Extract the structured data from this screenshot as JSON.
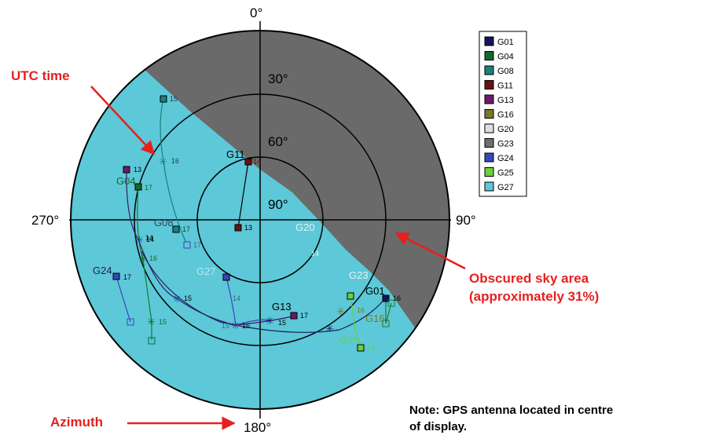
{
  "diagram": {
    "labels": {
      "azimuth_top": "0°",
      "azimuth_right": "90°",
      "azimuth_bottom": "180°",
      "azimuth_left": "270°",
      "elev_30": "30°",
      "elev_60": "60°",
      "elev_90": "90°"
    },
    "annotations": {
      "utc": "UTC time",
      "obscured_line1": "Obscured sky area",
      "obscured_line2": "(approximately 31%)",
      "azimuth": "Azimuth",
      "note_line1": "Note: GPS antenna located in centre",
      "note_line2": "of display."
    },
    "colors": {
      "sky": "#5cc8d8",
      "obscured": "#6a6a6a",
      "annotation": "#e62020"
    },
    "legend": [
      {
        "name": "G01",
        "color": "#14145a"
      },
      {
        "name": "G04",
        "color": "#136a2d"
      },
      {
        "name": "G08",
        "color": "#1a8080"
      },
      {
        "name": "G11",
        "color": "#6a1010"
      },
      {
        "name": "G13",
        "color": "#6a1a6a"
      },
      {
        "name": "G16",
        "color": "#7a7a26"
      },
      {
        "name": "G20",
        "color": "#e0e0e0"
      },
      {
        "name": "G23",
        "color": "#707070"
      },
      {
        "name": "G24",
        "color": "#3a46b8"
      },
      {
        "name": "G25",
        "color": "#6ad040"
      },
      {
        "name": "G27",
        "color": "#60c8d8"
      }
    ],
    "satellites": [
      {
        "name": "G01",
        "color": "#14145a",
        "marks": [
          "16"
        ]
      },
      {
        "name": "G04",
        "color": "#136a2d",
        "marks": [
          "17",
          "16",
          "15"
        ]
      },
      {
        "name": "G08",
        "color": "#1a8080",
        "marks": [
          "15",
          "16",
          "17"
        ]
      },
      {
        "name": "G11",
        "color": "#6a1010",
        "marks": [
          "14",
          "13"
        ]
      },
      {
        "name": "G13",
        "color": "#6a1a6a",
        "marks": [
          "13",
          "14",
          "15",
          "16",
          "17"
        ]
      },
      {
        "name": "G16",
        "color": "#7a7a26",
        "marks": [
          "16"
        ]
      },
      {
        "name": "G20",
        "color": "#e0e0e0",
        "marks": [
          "14"
        ]
      },
      {
        "name": "G23",
        "color": "#707070",
        "marks": []
      },
      {
        "name": "G24",
        "color": "#3a46b8",
        "marks": [
          "17",
          "14",
          "15"
        ]
      },
      {
        "name": "G25",
        "color": "#6ad040",
        "marks": [
          "14"
        ]
      },
      {
        "name": "G27",
        "color": "#60c8d8",
        "marks": [
          "17",
          "14",
          "15"
        ]
      }
    ]
  }
}
